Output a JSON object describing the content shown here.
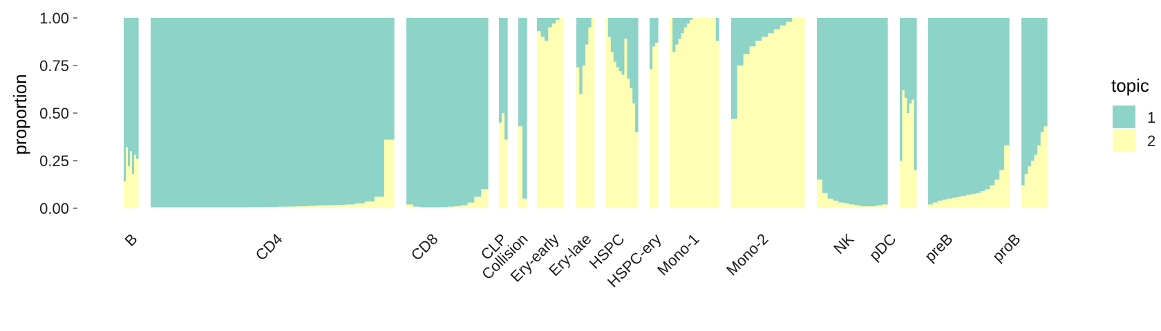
{
  "chart_data": {
    "type": "bar",
    "stacked": true,
    "ylabel": "proportion",
    "xlabel": "",
    "ylim": [
      0,
      1
    ],
    "yticks": [
      "0.00",
      "0.25",
      "0.50",
      "0.75",
      "1.00"
    ],
    "grid": false,
    "legend": {
      "title": "topic",
      "position": "right",
      "entries": [
        {
          "label": "1",
          "color": "#8dd3c7"
        },
        {
          "label": "2",
          "color": "#ffffb3"
        }
      ]
    },
    "series_names": [
      "1",
      "2"
    ],
    "colors": {
      "topic1": "#8dd3c7",
      "topic2": "#ffffb3"
    },
    "description_note": "Each category is a block of samples sorted by topic-2 proportion; values list the topic-2 proportion across samples in the block (topic 1 = 1 - value).",
    "categories": [
      {
        "label": "B",
        "topic2": [
          0.14,
          0.32,
          0.22,
          0.3,
          0.18,
          0.28,
          0.26
        ]
      },
      {
        "label": "CD4",
        "topic2": [
          0.005,
          0.005,
          0.005,
          0.005,
          0.005,
          0.005,
          0.005,
          0.005,
          0.005,
          0.005,
          0.006,
          0.006,
          0.007,
          0.008,
          0.009,
          0.01,
          0.012,
          0.014,
          0.016,
          0.018,
          0.02,
          0.025,
          0.035,
          0.06,
          0.36
        ]
      },
      {
        "label": "CD8",
        "topic2": [
          0.02,
          0.008,
          0.005,
          0.005,
          0.005,
          0.006,
          0.008,
          0.01,
          0.015,
          0.03,
          0.06,
          0.1
        ]
      },
      {
        "label": "CLP",
        "topic2": [
          0.45,
          0.5,
          0.36
        ]
      },
      {
        "label": "Collision",
        "topic2": [
          0.43,
          0.05
        ]
      },
      {
        "label": "Ery-early",
        "topic2": [
          0.93,
          0.9,
          0.88,
          0.95,
          0.97,
          0.99,
          1.0
        ]
      },
      {
        "label": "Ery-late",
        "topic2": [
          0.74,
          0.6,
          0.75,
          0.86,
          0.95,
          1.0
        ]
      },
      {
        "label": "HSPC",
        "topic2": [
          1.0,
          0.9,
          0.82,
          0.77,
          0.74,
          0.72,
          0.7,
          0.89,
          0.68,
          0.63,
          0.55,
          0.4
        ]
      },
      {
        "label": "HSPC-ery",
        "topic2": [
          0.73,
          0.85,
          0.87
        ]
      },
      {
        "label": "Mono-1",
        "topic2": [
          1.0,
          0.82,
          0.86,
          0.89,
          0.92,
          0.95,
          0.97,
          0.99,
          1.0,
          1.0,
          1.0,
          1.0,
          1.0,
          1.0,
          1.0,
          1.0,
          0.88
        ]
      },
      {
        "label": "Mono-2",
        "topic2": [
          0.47,
          0.75,
          0.81,
          0.85,
          0.88,
          0.9,
          0.92,
          0.94,
          0.96,
          0.98,
          1.0,
          1.0
        ]
      },
      {
        "label": "NK",
        "topic2": [
          0.15,
          0.08,
          0.05,
          0.04,
          0.03,
          0.025,
          0.02,
          0.015,
          0.01,
          0.01,
          0.01,
          0.015,
          0.02
        ]
      },
      {
        "label": "pDC",
        "topic2": [
          0.25,
          0.62,
          0.58,
          0.5,
          0.55,
          0.57,
          0.2
        ]
      },
      {
        "label": "preB",
        "topic2": [
          0.02,
          0.03,
          0.04,
          0.045,
          0.05,
          0.055,
          0.06,
          0.065,
          0.07,
          0.075,
          0.08,
          0.09,
          0.1,
          0.12,
          0.15,
          0.2,
          0.33
        ]
      },
      {
        "label": "proB",
        "topic2": [
          0.12,
          0.18,
          0.22,
          0.25,
          0.28,
          0.33,
          0.4,
          0.43
        ]
      }
    ]
  }
}
